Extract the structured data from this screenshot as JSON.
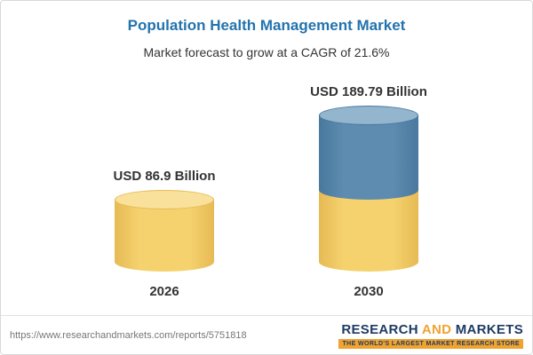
{
  "header": {
    "title": "Population Health Management Market",
    "subtitle": "Market forecast to grow at a CAGR of 21.6%"
  },
  "chart_data": {
    "type": "bar",
    "categories": [
      "2026",
      "2030"
    ],
    "values": [
      86.9,
      189.79
    ],
    "value_labels": [
      "USD 86.9 Billion",
      "USD 189.79 Billion"
    ],
    "unit": "USD Billion",
    "cagr": "21.6%",
    "title": "Population Health Management Market",
    "subtitle": "Market forecast to grow at a CAGR of 21.6%",
    "xlabel": "",
    "ylabel": "",
    "ylim": [
      0,
      200
    ],
    "grid": false,
    "legend": "none",
    "colors": {
      "title": "#2273AE",
      "base_fill": "#F5D26E",
      "base_edge": "#E6BA54",
      "base_top": "#F9E19B",
      "growth_fill": "#5E8CB0",
      "growth_edge": "#49789E",
      "growth_top": "#93B5CD"
    }
  },
  "footer": {
    "source_url": "https://www.researchandmarkets.com/reports/5751818",
    "logo": {
      "part1": "RESEARCH",
      "part2": "AND",
      "part3": "MARKETS",
      "tagline": "THE WORLD'S LARGEST MARKET RESEARCH STORE"
    }
  }
}
